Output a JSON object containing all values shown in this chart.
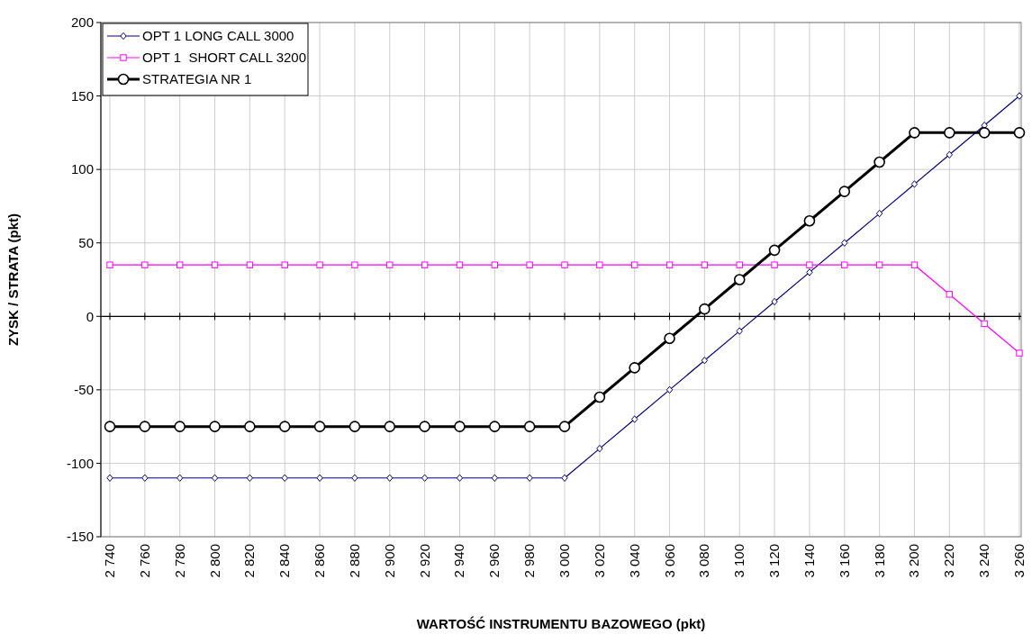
{
  "chart_data": {
    "type": "line",
    "xlabel": "WARTOŚĆ INSTRUMENTU BAZOWEGO (pkt)",
    "ylabel": "ZYSK / STRATA (pkt)",
    "categories": [
      "2 740",
      "2 760",
      "2 780",
      "2 800",
      "2 820",
      "2 840",
      "2 860",
      "2 880",
      "2 900",
      "2 920",
      "2 940",
      "2 960",
      "2 980",
      "3 000",
      "3 020",
      "3 040",
      "3 060",
      "3 080",
      "3 100",
      "3 120",
      "3 140",
      "3 160",
      "3 180",
      "3 200",
      "3 220",
      "3 240",
      "3 260"
    ],
    "series": [
      {
        "name": "OPT 1 LONG CALL 3000",
        "color": "#000080",
        "marker": "diamond",
        "values": [
          -110,
          -110,
          -110,
          -110,
          -110,
          -110,
          -110,
          -110,
          -110,
          -110,
          -110,
          -110,
          -110,
          -110,
          -90,
          -70,
          -50,
          -30,
          -10,
          10,
          30,
          50,
          70,
          90,
          110,
          130,
          150
        ]
      },
      {
        "name": "OPT 1  SHORT CALL 3200",
        "color": "#ff00ff",
        "marker": "square",
        "values": [
          35,
          35,
          35,
          35,
          35,
          35,
          35,
          35,
          35,
          35,
          35,
          35,
          35,
          35,
          35,
          35,
          35,
          35,
          35,
          35,
          35,
          35,
          35,
          35,
          15,
          -5,
          -25
        ]
      },
      {
        "name": "STRATEGIA NR 1",
        "color": "#000000",
        "marker": "circle",
        "values": [
          -75,
          -75,
          -75,
          -75,
          -75,
          -75,
          -75,
          -75,
          -75,
          -75,
          -75,
          -75,
          -75,
          -75,
          -55,
          -35,
          -15,
          5,
          25,
          45,
          65,
          85,
          105,
          125,
          125,
          125,
          125
        ]
      }
    ],
    "ylim": [
      -150,
      200
    ],
    "yticks": [
      -150,
      -100,
      -50,
      0,
      50,
      100,
      150,
      200
    ],
    "grid": true,
    "legend": "top left"
  }
}
